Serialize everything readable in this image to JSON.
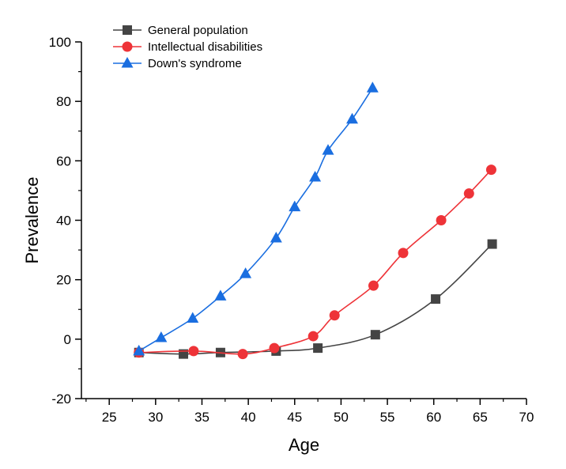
{
  "chart_data": {
    "type": "line",
    "xlabel": "Age",
    "ylabel": "Prevalence",
    "xlim": [
      22,
      70
    ],
    "ylim": [
      -20,
      100
    ],
    "x_ticks": [
      25,
      30,
      35,
      40,
      45,
      50,
      55,
      60,
      65,
      70
    ],
    "y_ticks": [
      -20,
      0,
      20,
      40,
      60,
      80,
      100
    ],
    "grid": false,
    "legend_position": "top-left",
    "series": [
      {
        "name": "General population",
        "color": "#444444",
        "marker": "square",
        "x": [
          28.2,
          33,
          37,
          43,
          47.5,
          53.7,
          60.2,
          66.3
        ],
        "y": [
          -4.5,
          -5,
          -4.5,
          -4,
          -3,
          1.5,
          13.5,
          32
        ]
      },
      {
        "name": "Intellectual disabilities",
        "color": "#ee3338",
        "marker": "circle",
        "x": [
          28.2,
          34.1,
          39.4,
          42.8,
          47,
          49.3,
          53.5,
          56.7,
          60.8,
          63.8,
          66.2
        ],
        "y": [
          -4.5,
          -4,
          -5,
          -3,
          1,
          8,
          18,
          29,
          40,
          49,
          57
        ]
      },
      {
        "name": "Down's syndrome",
        "color": "#1a6ee0",
        "marker": "triangle",
        "x": [
          28.2,
          30.6,
          34,
          37,
          39.7,
          43,
          45,
          47.2,
          48.6,
          51.2,
          53.4
        ],
        "y": [
          -4,
          0.5,
          7,
          14.5,
          22,
          34,
          44.5,
          54.5,
          63.5,
          74,
          84.5
        ]
      }
    ]
  }
}
